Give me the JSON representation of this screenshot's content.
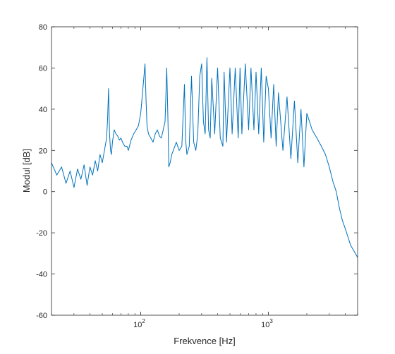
{
  "chart_data": {
    "type": "line",
    "xlabel": "Frekvence [Hz]",
    "ylabel": "Modul [dB]",
    "xscale": "log",
    "xlim": [
      20,
      5000
    ],
    "ylim": [
      -60,
      80
    ],
    "yticks": [
      80,
      60,
      40,
      20,
      0,
      -20,
      -40,
      -60
    ],
    "ytick_labels": [
      "80",
      "60",
      "40",
      "20",
      "0",
      "-20",
      "-40",
      "-60"
    ],
    "xticks": [
      {
        "value": 100,
        "base": "10",
        "exp": "2"
      },
      {
        "value": 1000,
        "base": "10",
        "exp": "3"
      }
    ],
    "grid": false,
    "line_color": "#0072bd",
    "series": [
      {
        "values_note": "magnitude spectrum",
        "x": [
          20,
          22,
          24,
          26,
          28,
          30,
          32,
          34,
          36,
          38,
          40,
          42,
          44,
          46,
          48,
          50,
          52,
          54,
          55,
          56,
          57,
          58,
          59,
          60,
          62,
          64,
          66,
          68,
          70,
          72,
          75,
          78,
          80,
          84,
          88,
          92,
          96,
          100,
          104,
          108,
          110,
          112,
          115,
          120,
          125,
          130,
          135,
          140,
          145,
          150,
          155,
          160,
          164,
          166,
          170,
          175,
          180,
          190,
          200,
          210,
          220,
          225,
          230,
          240,
          250,
          260,
          270,
          280,
          290,
          300,
          310,
          320,
          330,
          340,
          350,
          360,
          380,
          400,
          420,
          440,
          450,
          470,
          500,
          520,
          550,
          580,
          600,
          620,
          660,
          700,
          730,
          770,
          800,
          840,
          880,
          920,
          960,
          1000,
          1050,
          1100,
          1150,
          1200,
          1300,
          1400,
          1500,
          1600,
          1700,
          1800,
          1900,
          2000,
          2200,
          2400,
          2600,
          2800,
          3000,
          3200,
          3400,
          3600,
          3800,
          4000,
          4200,
          4400,
          4600,
          4800,
          5000
        ],
        "y": [
          14,
          8,
          12,
          4,
          10,
          2,
          11,
          6,
          13,
          3,
          12,
          8,
          15,
          10,
          18,
          14,
          20,
          26,
          35,
          50,
          28,
          20,
          18,
          24,
          30,
          28,
          27,
          25,
          26,
          24,
          22,
          22,
          20,
          25,
          28,
          30,
          32,
          38,
          50,
          62,
          45,
          32,
          28,
          26,
          24,
          28,
          30,
          27,
          26,
          30,
          34,
          60,
          30,
          12,
          14,
          18,
          20,
          24,
          20,
          22,
          52,
          25,
          18,
          22,
          56,
          24,
          20,
          28,
          56,
          62,
          34,
          28,
          65,
          30,
          26,
          55,
          28,
          60,
          26,
          22,
          58,
          24,
          60,
          28,
          60,
          26,
          60,
          28,
          62,
          30,
          60,
          30,
          58,
          28,
          60,
          24,
          56,
          50,
          26,
          52,
          22,
          48,
          20,
          46,
          16,
          44,
          14,
          40,
          12,
          38,
          30,
          26,
          22,
          18,
          12,
          5,
          0,
          -8,
          -14,
          -18,
          -22,
          -26,
          -28,
          -30,
          -32
        ]
      }
    ]
  }
}
